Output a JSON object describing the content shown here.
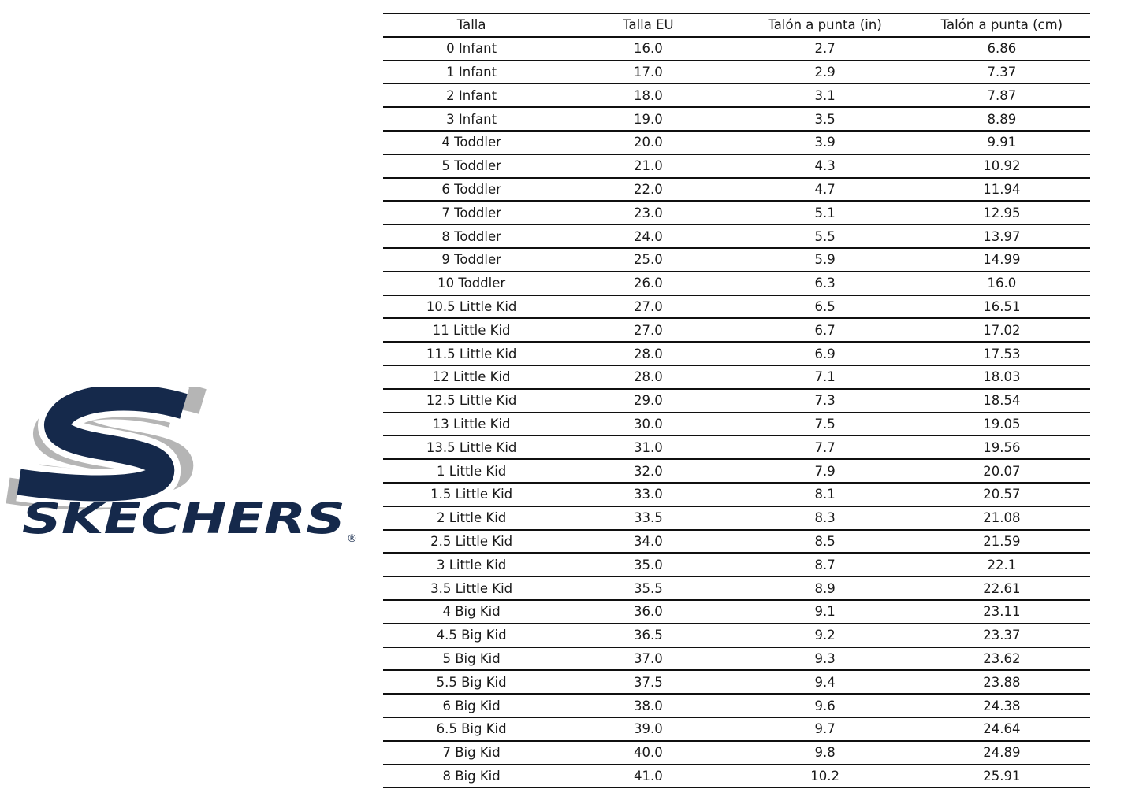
{
  "logo": {
    "wordmark": "SKECHERS",
    "registered_mark": "®",
    "navy_color": "#15294B",
    "gray_color": "#B5B5B5"
  },
  "chart_data": {
    "type": "table",
    "title": "",
    "columns": [
      "Talla",
      "Talla EU",
      "Talón a punta (in)",
      "Talón a punta (cm)"
    ],
    "rows": [
      [
        "0 Infant",
        "16.0",
        "2.7",
        "6.86"
      ],
      [
        "1 Infant",
        "17.0",
        "2.9",
        "7.37"
      ],
      [
        "2 Infant",
        "18.0",
        "3.1",
        "7.87"
      ],
      [
        "3 Infant",
        "19.0",
        "3.5",
        "8.89"
      ],
      [
        "4 Toddler",
        "20.0",
        "3.9",
        "9.91"
      ],
      [
        "5 Toddler",
        "21.0",
        "4.3",
        "10.92"
      ],
      [
        "6 Toddler",
        "22.0",
        "4.7",
        "11.94"
      ],
      [
        "7 Toddler",
        "23.0",
        "5.1",
        "12.95"
      ],
      [
        "8 Toddler",
        "24.0",
        "5.5",
        "13.97"
      ],
      [
        "9 Toddler",
        "25.0",
        "5.9",
        "14.99"
      ],
      [
        "10 Toddler",
        "26.0",
        "6.3",
        "16.0"
      ],
      [
        "10.5 Little Kid",
        "27.0",
        "6.5",
        "16.51"
      ],
      [
        "11 Little Kid",
        "27.0",
        "6.7",
        "17.02"
      ],
      [
        "11.5 Little Kid",
        "28.0",
        "6.9",
        "17.53"
      ],
      [
        "12 Little Kid",
        "28.0",
        "7.1",
        "18.03"
      ],
      [
        "12.5 Little Kid",
        "29.0",
        "7.3",
        "18.54"
      ],
      [
        "13 Little Kid",
        "30.0",
        "7.5",
        "19.05"
      ],
      [
        "13.5 Little Kid",
        "31.0",
        "7.7",
        "19.56"
      ],
      [
        "1 Little Kid",
        "32.0",
        "7.9",
        "20.07"
      ],
      [
        "1.5 Little Kid",
        "33.0",
        "8.1",
        "20.57"
      ],
      [
        "2 Little Kid",
        "33.5",
        "8.3",
        "21.08"
      ],
      [
        "2.5 Little Kid",
        "34.0",
        "8.5",
        "21.59"
      ],
      [
        "3 Little Kid",
        "35.0",
        "8.7",
        "22.1"
      ],
      [
        "3.5 Little Kid",
        "35.5",
        "8.9",
        "22.61"
      ],
      [
        "4 Big Kid",
        "36.0",
        "9.1",
        "23.11"
      ],
      [
        "4.5 Big Kid",
        "36.5",
        "9.2",
        "23.37"
      ],
      [
        "5 Big Kid",
        "37.0",
        "9.3",
        "23.62"
      ],
      [
        "5.5 Big Kid",
        "37.5",
        "9.4",
        "23.88"
      ],
      [
        "6 Big Kid",
        "38.0",
        "9.6",
        "24.38"
      ],
      [
        "6.5 Big Kid",
        "39.0",
        "9.7",
        "24.64"
      ],
      [
        "7 Big Kid",
        "40.0",
        "9.8",
        "24.89"
      ],
      [
        "8 Big Kid",
        "41.0",
        "10.2",
        "25.91"
      ]
    ]
  }
}
